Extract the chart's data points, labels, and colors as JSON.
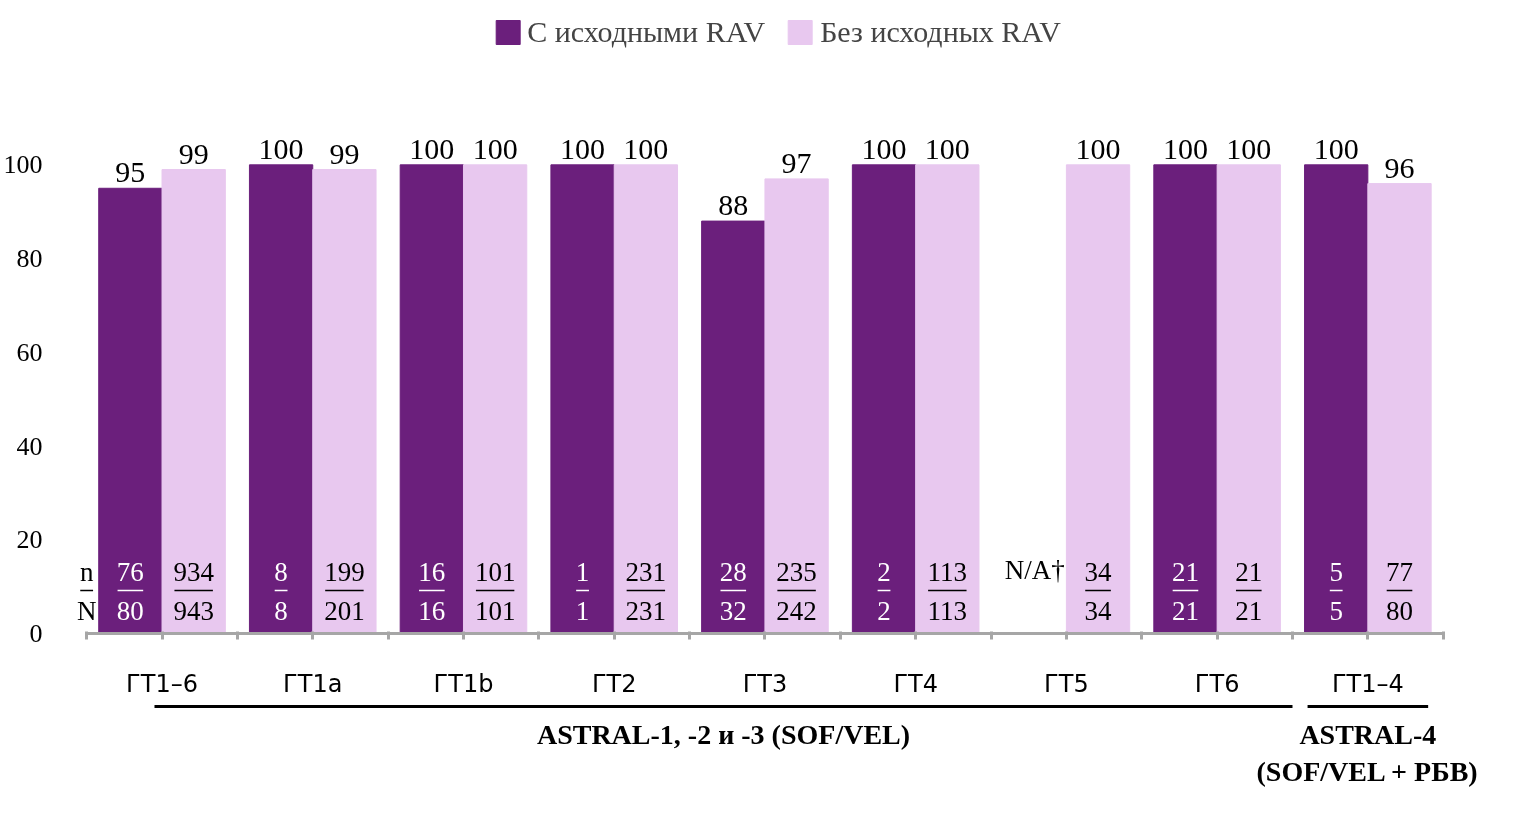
{
  "chart_data": {
    "type": "bar",
    "categories": [
      "ГТ1–6",
      "ГТ1a",
      "ГТ1b",
      "ГТ2",
      "ГТ3",
      "ГТ4",
      "ГТ5",
      "ГТ6",
      "ГТ1–4"
    ],
    "series": [
      {
        "name": "С исходными RAV",
        "color": "#6b1f7c",
        "values": [
          95,
          100,
          100,
          100,
          88,
          100,
          null,
          100,
          100
        ]
      },
      {
        "name": "Без исходных RAV",
        "color": "#e8c8ef",
        "values": [
          99,
          99,
          100,
          100,
          97,
          100,
          100,
          100,
          96
        ]
      }
    ],
    "ylim": [
      0,
      100
    ],
    "yticks": [
      0,
      20,
      40,
      60,
      80,
      100
    ],
    "grid": false,
    "legend": "top",
    "data_labels": true,
    "annotations": [
      "76\n80",
      "934\n943",
      "8\n8",
      "199\n201",
      "16\n16",
      "101\n101",
      "1\n1",
      "231\n231",
      "28\n32",
      "235\n242",
      "2\n2",
      "113\n113",
      "N/A†",
      "34\n34",
      "21\n21",
      "21\n21",
      "5\n5",
      "77\n80",
      "n\nN",
      "ASTRAL-1, -2 и -3 (SOF/VEL)",
      "ASTRAL-4\n(SOF/VEL + РБВ)"
    ]
  }
}
